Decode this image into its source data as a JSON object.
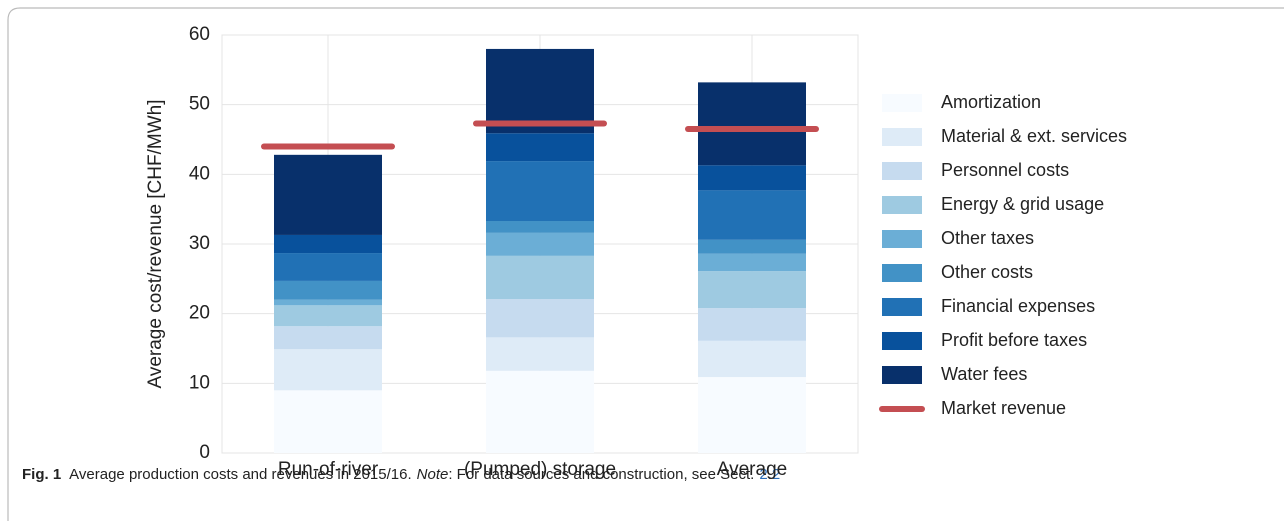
{
  "chart_data": {
    "type": "stacked-bar",
    "ylabel": "Average cost/revenue [CHF/MWh]",
    "categories": [
      "Run-of-river",
      "(Pumped) storage",
      "Average"
    ],
    "ylim": [
      0,
      60
    ],
    "yticks": [
      0,
      10,
      20,
      30,
      40,
      50,
      60
    ],
    "grid": true,
    "series": [
      {
        "name": "Amortization",
        "color": "#f7fbff",
        "values": [
          9.0,
          11.8,
          10.9
        ]
      },
      {
        "name": "Material & ext. services",
        "color": "#deebf7",
        "values": [
          5.9,
          4.8,
          5.2
        ]
      },
      {
        "name": "Personnel costs",
        "color": "#c6dbef",
        "values": [
          3.3,
          5.5,
          4.7
        ]
      },
      {
        "name": "Energy & grid usage",
        "color": "#9ecae1",
        "values": [
          3.0,
          6.2,
          5.3
        ]
      },
      {
        "name": "Other taxes",
        "color": "#6baed6",
        "values": [
          0.8,
          3.3,
          2.5
        ]
      },
      {
        "name": "Other costs",
        "color": "#4292c6",
        "values": [
          2.7,
          1.7,
          2.0
        ]
      },
      {
        "name": "Financial expenses",
        "color": "#2171b5",
        "values": [
          4.0,
          8.6,
          7.1
        ]
      },
      {
        "name": "Profit before taxes",
        "color": "#08519c",
        "values": [
          2.6,
          4.0,
          3.6
        ]
      },
      {
        "name": "Water fees",
        "color": "#08306b",
        "values": [
          11.5,
          12.1,
          11.9
        ]
      }
    ],
    "market_revenue": {
      "name": "Market revenue",
      "color": "#c44e52",
      "values": [
        44.0,
        47.3,
        46.5
      ]
    }
  },
  "caption": {
    "label": "Fig. 1",
    "text": "Average production costs and revenues in 2015/16.",
    "note_label": "Note",
    "note_text": ": For data sources and construction, see Sect.",
    "link": "2.2"
  }
}
